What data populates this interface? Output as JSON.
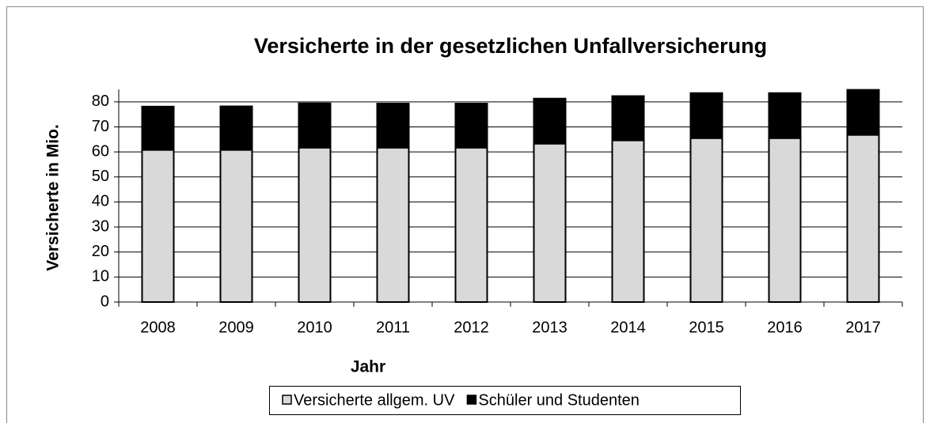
{
  "chart_data": {
    "type": "stacked_bar",
    "title": "Versicherte in der gesetzlichen Unfallversicherung",
    "xlabel": "Jahr",
    "ylabel": "Versicherte in Mio.",
    "categories": [
      "2008",
      "2009",
      "2010",
      "2011",
      "2012",
      "2013",
      "2014",
      "2015",
      "2016",
      "2017"
    ],
    "series": [
      {
        "name": "Versicherte allgem. UV",
        "color": "#d9d9d9",
        "values": [
          60.8,
          60.8,
          61.7,
          61.7,
          61.7,
          63.3,
          64.6,
          65.5,
          65.5,
          66.8
        ]
      },
      {
        "name": "Schüler und Studenten",
        "color": "#000000",
        "values": [
          17.3,
          17.4,
          17.7,
          17.6,
          17.6,
          18.0,
          17.7,
          18.0,
          18.0,
          18.0
        ]
      }
    ],
    "ylim": [
      0,
      85
    ],
    "yticks": [
      0,
      10,
      20,
      30,
      40,
      50,
      60,
      70,
      80
    ],
    "grid": true,
    "legend": "bottom"
  }
}
